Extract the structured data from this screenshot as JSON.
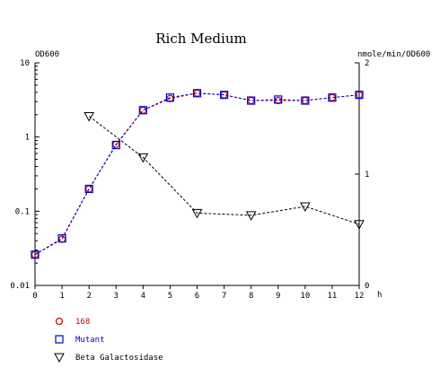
{
  "chart_data": {
    "type": "line",
    "title": "Rich Medium",
    "y_left_label": "OD600",
    "y_right_label": "nmole/min/OD600",
    "x_unit_label": "h",
    "x_ticks": [
      "0",
      "1",
      "2",
      "3",
      "4",
      "5",
      "6",
      "7",
      "8",
      "9",
      "10",
      "11",
      "12"
    ],
    "y_left_ticks": [
      "10",
      "1",
      "0.1",
      "0.01"
    ],
    "y_left_scale": "log",
    "y_left_range": [
      0.01,
      10
    ],
    "y_right_ticks": [
      "2",
      "1",
      "0"
    ],
    "y_right_range": [
      0,
      2
    ],
    "x_range": [
      0,
      12
    ],
    "grid": false,
    "legend_position": "bottom-left",
    "series": [
      {
        "name": "168",
        "axis": "left",
        "marker": "circle",
        "color": "#cc0000",
        "x": [
          0,
          1,
          2,
          3,
          4,
          5,
          6,
          7,
          8,
          9,
          10,
          11,
          12
        ],
        "y": [
          0.026,
          0.042,
          0.2,
          0.8,
          2.3,
          3.3,
          3.9,
          3.7,
          3.1,
          3.1,
          3.1,
          3.4,
          3.7
        ]
      },
      {
        "name": "Mutant",
        "axis": "left",
        "marker": "square",
        "color": "#0000cc",
        "x": [
          0,
          1,
          2,
          3,
          4,
          5,
          6,
          7,
          8,
          9,
          10,
          11,
          12
        ],
        "y": [
          0.026,
          0.043,
          0.2,
          0.78,
          2.3,
          3.4,
          3.9,
          3.7,
          3.1,
          3.2,
          3.1,
          3.4,
          3.7
        ]
      },
      {
        "name": "Beta Galactosidase",
        "axis": "right",
        "marker": "triangle-down",
        "color": "#000000",
        "x": [
          2,
          4,
          6,
          8,
          10,
          12
        ],
        "y": [
          1.52,
          1.15,
          0.65,
          0.63,
          0.71,
          0.55
        ]
      }
    ]
  }
}
